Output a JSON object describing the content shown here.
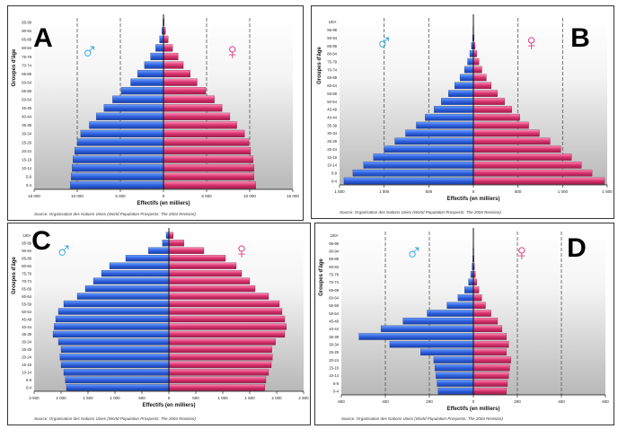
{
  "chart_data": [
    {
      "type": "bar",
      "panel": "A",
      "title": "A",
      "male_symbol": "♂",
      "female_symbol": "♀",
      "ylabel": "Groupes d'âge",
      "xlabel": "Effectifs (en milliers)",
      "source": "Source: Organisation des Nations Unies (World Population Prospects: The 2004 Revision)",
      "xlim": [
        -15000,
        15000
      ],
      "xticks": [
        "15 000",
        "10 000",
        "5 000",
        "0",
        "5 000",
        "10 000",
        "15 000"
      ],
      "xtick_values": [
        -15000,
        -10000,
        -5000,
        0,
        5000,
        10000,
        15000
      ],
      "guides": [
        -10000,
        -5000,
        5000,
        10000
      ],
      "categories": [
        "0-4",
        "5-9",
        "10-14",
        "15-19",
        "20-24",
        "25-29",
        "30-34",
        "35-39",
        "40-44",
        "45-49",
        "50-54",
        "55-59",
        "60-64",
        "65-69",
        "70-74",
        "75-79",
        "80-84",
        "85-89",
        "90-94",
        "95-99"
      ],
      "series": [
        {
          "name": "Hommes",
          "values": [
            10800,
            10700,
            10600,
            10500,
            10300,
            10000,
            9600,
            8600,
            7800,
            6900,
            5900,
            4900,
            3800,
            3000,
            2200,
            1500,
            900,
            450,
            180,
            60
          ]
        },
        {
          "name": "Femmes",
          "values": [
            10700,
            10500,
            10500,
            10400,
            10100,
            9900,
            9400,
            8500,
            7700,
            6800,
            5900,
            4900,
            3900,
            3100,
            2300,
            1700,
            1050,
            550,
            230,
            80
          ]
        }
      ]
    },
    {
      "type": "bar",
      "panel": "B",
      "title": "B",
      "male_symbol": "♂",
      "female_symbol": "♀",
      "ylabel": "Groupes d'âge",
      "xlabel": "Effectifs (en milliers)",
      "source": "Source: Organisation des Nations Unies (World Population Prospects: The 2004 Revision)",
      "xlim": [
        -1500,
        1500
      ],
      "xticks": [
        "1 500",
        "1 000",
        "500",
        "0",
        "500",
        "1 000",
        "1 500"
      ],
      "xtick_values": [
        -1500,
        -1000,
        -500,
        0,
        500,
        1000,
        1500
      ],
      "guides": [
        -1000,
        -500,
        500,
        1000
      ],
      "categories": [
        "0-4",
        "5-9",
        "10-14",
        "15-19",
        "20-24",
        "25-29",
        "30-34",
        "35-39",
        "40-44",
        "45-49",
        "50-54",
        "55-59",
        "60-64",
        "65-69",
        "70-74",
        "75-79",
        "80-84",
        "85-89",
        "90-94",
        "95-99",
        "100+"
      ],
      "series": [
        {
          "name": "Hommes",
          "values": [
            1450,
            1350,
            1230,
            1120,
            1000,
            880,
            760,
            640,
            540,
            440,
            360,
            280,
            210,
            150,
            100,
            65,
            40,
            22,
            10,
            5,
            2
          ]
        },
        {
          "name": "Femmes",
          "values": [
            1470,
            1330,
            1210,
            1100,
            980,
            860,
            740,
            620,
            520,
            430,
            350,
            270,
            200,
            145,
            95,
            62,
            38,
            20,
            9,
            4,
            2
          ]
        }
      ]
    },
    {
      "type": "bar",
      "panel": "C",
      "title": "C",
      "male_symbol": "♂",
      "female_symbol": "♀",
      "ylabel": "Groupes d'âge",
      "xlabel": "Effectifs (en milliers)",
      "source": "Source: Organisation des Nations Unies (World Population Prospects: The 2004 Revision)",
      "xlim": [
        -2500,
        2500
      ],
      "xticks": [
        "2 500",
        "2 000",
        "1 500",
        "1 000",
        "500",
        "0",
        "500",
        "1 000",
        "1 500",
        "2 000",
        "2 500"
      ],
      "xtick_values": [
        -2500,
        -2000,
        -1500,
        -1000,
        -500,
        0,
        500,
        1000,
        1500,
        2000,
        2500
      ],
      "guides": [],
      "categories": [
        "0-4",
        "5-9",
        "10-14",
        "15-19",
        "20-24",
        "25-29",
        "30-34",
        "35-39",
        "40-44",
        "45-49",
        "50-54",
        "55-59",
        "60-64",
        "65-69",
        "70-74",
        "75-79",
        "80-84",
        "85-89",
        "90-94",
        "95-99",
        "100+"
      ],
      "series": [
        {
          "name": "Hommes",
          "values": [
            1900,
            1920,
            1950,
            2000,
            2020,
            2000,
            2050,
            2150,
            2130,
            2100,
            2050,
            1950,
            1700,
            1550,
            1400,
            1250,
            1100,
            800,
            380,
            120,
            50
          ]
        },
        {
          "name": "Femmes",
          "values": [
            1780,
            1800,
            1850,
            1900,
            1920,
            1910,
            1980,
            2150,
            2180,
            2150,
            2100,
            2050,
            1850,
            1600,
            1500,
            1350,
            1250,
            1050,
            650,
            280,
            80
          ]
        }
      ]
    },
    {
      "type": "bar",
      "panel": "D",
      "title": "D",
      "male_symbol": "♂",
      "female_symbol": "♀",
      "ylabel": "Groupes d'âge",
      "xlabel": "Effectifs (en milliers)",
      "source": "Source: Organisation des Nations Unies (World Population Prospects: The 2004 Revision)",
      "xlim": [
        -600,
        600
      ],
      "xticks": [
        "600",
        "400",
        "200",
        "0",
        "200",
        "400",
        "600"
      ],
      "xtick_values": [
        -600,
        -400,
        -200,
        0,
        200,
        400,
        600
      ],
      "guides": [
        -400,
        -200,
        200,
        400
      ],
      "categories": [
        "0-4",
        "5-9",
        "10-14",
        "15-19",
        "20-24",
        "25-29",
        "30-34",
        "35-39",
        "40-44",
        "45-49",
        "50-54",
        "55-59",
        "60-64",
        "65-69",
        "70-74",
        "75-79",
        "80-84",
        "85-89",
        "90-94",
        "95-99",
        "100+"
      ],
      "series": [
        {
          "name": "Hommes",
          "values": [
            160,
            165,
            170,
            175,
            180,
            240,
            380,
            520,
            420,
            320,
            210,
            120,
            70,
            40,
            22,
            12,
            6,
            3,
            2,
            1,
            1
          ]
        },
        {
          "name": "Femmes",
          "values": [
            150,
            155,
            160,
            165,
            170,
            150,
            160,
            150,
            130,
            110,
            80,
            55,
            38,
            25,
            15,
            9,
            5,
            3,
            2,
            1,
            1
          ]
        }
      ]
    }
  ]
}
